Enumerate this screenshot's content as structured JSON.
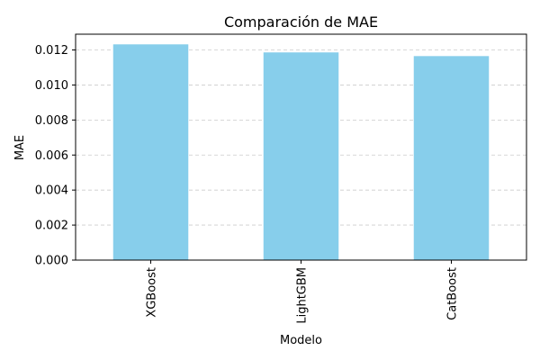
{
  "chart_data": {
    "type": "bar",
    "title": "Comparación de MAE",
    "xlabel": "Modelo",
    "ylabel": "MAE",
    "categories": [
      "XGBoost",
      "LightGBM",
      "CatBoost"
    ],
    "values": [
      0.01232,
      0.01186,
      0.01165
    ],
    "ylim": [
      0,
      0.0129
    ],
    "yticks": [
      "0.000",
      "0.002",
      "0.004",
      "0.006",
      "0.008",
      "0.010",
      "0.012"
    ],
    "ytick_values": [
      0,
      0.002,
      0.004,
      0.006,
      0.008,
      0.01,
      0.012
    ],
    "grid": "y-dashed",
    "bar_color": "#87CEEB",
    "grid_color": "#cccccc"
  }
}
